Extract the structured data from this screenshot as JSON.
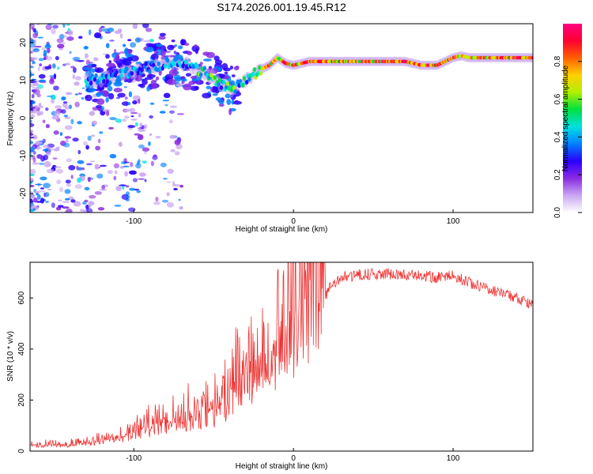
{
  "title": "S174.2026.001.19.45.R12",
  "chart_data": [
    {
      "type": "heatmap",
      "xlabel": "Height of straight line (km)",
      "ylabel": "Frequency (Hz)",
      "xlim": [
        -165,
        150
      ],
      "ylim": [
        -25,
        25
      ],
      "x_ticks": [
        -100,
        0,
        100
      ],
      "y_ticks": [
        -20,
        -10,
        0,
        10,
        20
      ],
      "colorbar": {
        "label": "Normalized spectral amplitude",
        "range": [
          0,
          1
        ],
        "ticks": [
          0.0,
          0.2,
          0.4,
          0.6,
          0.8
        ],
        "tick_labels": [
          "0.0",
          "0.2",
          "0.4",
          "0.6",
          "0.8"
        ],
        "colors": [
          "#ffffff",
          "#c9a6f2",
          "#8a2be2",
          "#2a00ff",
          "#0080ff",
          "#00e0e0",
          "#00e040",
          "#b0f000",
          "#ffd000",
          "#ff6000",
          "#ff0030",
          "#ff0080"
        ]
      },
      "ridge": {
        "description": "peak frequency (Hz) versus height (km)",
        "x": [
          -125,
          -115,
          -105,
          -95,
          -85,
          -75,
          -65,
          -55,
          -45,
          -40,
          -35,
          -30,
          -25,
          -20,
          -15,
          -10,
          -5,
          0,
          10,
          20,
          30,
          40,
          50,
          60,
          70,
          80,
          90,
          95,
          100,
          105,
          110,
          120,
          130,
          140,
          148
        ],
        "y": [
          10,
          10.5,
          12,
          13,
          14,
          15,
          14,
          12,
          9,
          7.5,
          8.5,
          10,
          11.5,
          13,
          14,
          16,
          14.5,
          14,
          15,
          15,
          15,
          15,
          15,
          15,
          15,
          14,
          14,
          15,
          16,
          16.5,
          16,
          16,
          16,
          16,
          16
        ]
      }
    },
    {
      "type": "line",
      "xlabel": "Height of straight line (km)",
      "ylabel": "SNR (10 * v/v)",
      "xlim": [
        -165,
        150
      ],
      "ylim": [
        0,
        740
      ],
      "x_ticks": [
        -100,
        0,
        100
      ],
      "y_ticks": [
        0,
        200,
        400,
        600
      ],
      "series": [
        {
          "name": "SNR",
          "color": "#ee3333",
          "x": [
            -165,
            -150,
            -140,
            -130,
            -120,
            -110,
            -100,
            -90,
            -80,
            -70,
            -60,
            -50,
            -45,
            -40,
            -35,
            -30,
            -25,
            -20,
            -15,
            -10,
            -5,
            0,
            5,
            10,
            15,
            20,
            25,
            30,
            40,
            50,
            60,
            70,
            80,
            90,
            100,
            110,
            120,
            130,
            140,
            150
          ],
          "y": [
            20,
            20,
            22,
            25,
            35,
            50,
            60,
            80,
            100,
            110,
            110,
            130,
            160,
            180,
            220,
            240,
            270,
            300,
            330,
            370,
            400,
            430,
            460,
            500,
            560,
            610,
            660,
            680,
            690,
            695,
            695,
            690,
            685,
            680,
            690,
            660,
            640,
            620,
            600,
            570
          ]
        }
      ]
    }
  ]
}
